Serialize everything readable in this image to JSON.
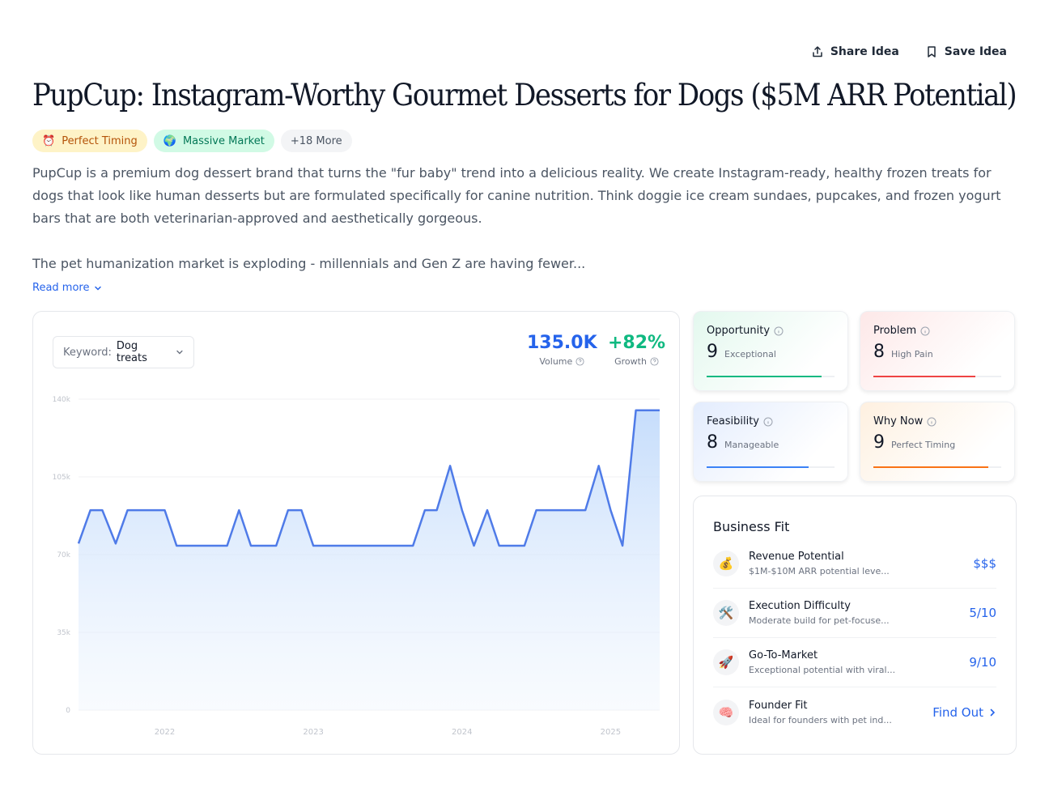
{
  "header": {
    "share_label": "Share Idea",
    "save_label": "Save Idea",
    "title": "PupCup: Instagram-Worthy Gourmet Desserts for Dogs ($5M ARR Potential)"
  },
  "badges": [
    {
      "icon": "⏰",
      "label": "Perfect Timing"
    },
    {
      "icon": "🌍",
      "label": "Massive Market"
    },
    {
      "icon": "",
      "label": "+18 More"
    }
  ],
  "description": {
    "p1": "PupCup is a premium dog dessert brand that turns the \"fur baby\" trend into a delicious reality. We create Instagram-ready, healthy frozen treats for dogs that look like human desserts but are formulated specifically for canine nutrition. Think doggie ice cream sundaes, pupcakes, and frozen yogurt bars that are both veterinarian-approved and aesthetically gorgeous.",
    "p2": "The pet humanization market is exploding - millennials and Gen Z are having fewer...",
    "read_more": "Read more"
  },
  "keyword": {
    "label": "Keyword:",
    "value": "Dog treats"
  },
  "stats": {
    "volume": {
      "value": "135.0K",
      "label": "Volume",
      "color": "#2563eb"
    },
    "growth": {
      "value": "+82%",
      "label": "Growth",
      "color": "#10b981"
    }
  },
  "chart_data": {
    "type": "area",
    "y_ticks": [
      "140k",
      "105k",
      "70k",
      "35k",
      "0"
    ],
    "y_tick_values": [
      140000,
      105000,
      70000,
      35000,
      0
    ],
    "ylim": [
      0,
      140000
    ],
    "x_ticks": [
      "2022",
      "2023",
      "2024",
      "2025"
    ],
    "x_tick_positions": [
      2022.0,
      2023.0,
      2024.0,
      2025.0
    ],
    "xlim": [
      2021.42,
      2025.33
    ],
    "series": [
      {
        "color": "#4f7be8",
        "points": [
          [
            2021.42,
            75000
          ],
          [
            2021.5,
            90000
          ],
          [
            2021.58,
            90000
          ],
          [
            2021.67,
            75000
          ],
          [
            2021.75,
            90000
          ],
          [
            2021.83,
            90000
          ],
          [
            2021.92,
            90000
          ],
          [
            2022.0,
            90000
          ],
          [
            2022.08,
            74000
          ],
          [
            2022.17,
            74000
          ],
          [
            2022.25,
            74000
          ],
          [
            2022.33,
            74000
          ],
          [
            2022.42,
            74000
          ],
          [
            2022.5,
            90000
          ],
          [
            2022.58,
            74000
          ],
          [
            2022.67,
            74000
          ],
          [
            2022.75,
            74000
          ],
          [
            2022.83,
            90000
          ],
          [
            2022.92,
            90000
          ],
          [
            2023.0,
            74000
          ],
          [
            2023.08,
            74000
          ],
          [
            2023.17,
            74000
          ],
          [
            2023.25,
            74000
          ],
          [
            2023.33,
            74000
          ],
          [
            2023.42,
            74000
          ],
          [
            2023.5,
            74000
          ],
          [
            2023.58,
            74000
          ],
          [
            2023.67,
            74000
          ],
          [
            2023.75,
            90000
          ],
          [
            2023.83,
            90000
          ],
          [
            2023.92,
            110000
          ],
          [
            2024.0,
            90000
          ],
          [
            2024.08,
            74000
          ],
          [
            2024.17,
            90000
          ],
          [
            2024.25,
            74000
          ],
          [
            2024.33,
            74000
          ],
          [
            2024.42,
            74000
          ],
          [
            2024.5,
            90000
          ],
          [
            2024.58,
            90000
          ],
          [
            2024.67,
            90000
          ],
          [
            2024.75,
            90000
          ],
          [
            2024.83,
            90000
          ],
          [
            2024.92,
            110000
          ],
          [
            2025.0,
            90000
          ],
          [
            2025.08,
            74000
          ],
          [
            2025.17,
            135000
          ],
          [
            2025.25,
            135000
          ],
          [
            2025.33,
            135000
          ]
        ]
      }
    ]
  },
  "scores": [
    {
      "label": "Opportunity",
      "score": "9",
      "desc": "Exceptional",
      "fill": 0.9,
      "color": "#10b981",
      "bg": "linear-gradient(135deg,#e3f8ee 0%,#ffffff 75%)"
    },
    {
      "label": "Problem",
      "score": "8",
      "desc": "High Pain",
      "fill": 0.8,
      "color": "#ef4444",
      "bg": "linear-gradient(135deg,#fde8e8 0%,#ffffff 75%)"
    },
    {
      "label": "Feasibility",
      "score": "8",
      "desc": "Manageable",
      "fill": 0.8,
      "color": "#3b82f6",
      "bg": "linear-gradient(135deg,#e3ecfd 0%,#ffffff 75%)"
    },
    {
      "label": "Why Now",
      "score": "9",
      "desc": "Perfect Timing",
      "fill": 0.9,
      "color": "#f97316",
      "bg": "linear-gradient(135deg,#fef0e0 0%,#ffffff 75%)"
    }
  ],
  "business_fit": {
    "title": "Business Fit",
    "rows": [
      {
        "icon": "💰",
        "name": "Revenue Potential",
        "sub": "$1M-$10M ARR potential leve...",
        "value": "$$$"
      },
      {
        "icon": "🛠️",
        "name": "Execution Difficulty",
        "sub": "Moderate build for pet-focuse...",
        "value": "5/10"
      },
      {
        "icon": "🚀",
        "name": "Go-To-Market",
        "sub": "Exceptional potential with viral...",
        "value": "9/10"
      },
      {
        "icon": "🧠",
        "name": "Founder Fit",
        "sub": "Ideal for founders with pet ind...",
        "value": "Find Out"
      }
    ]
  }
}
